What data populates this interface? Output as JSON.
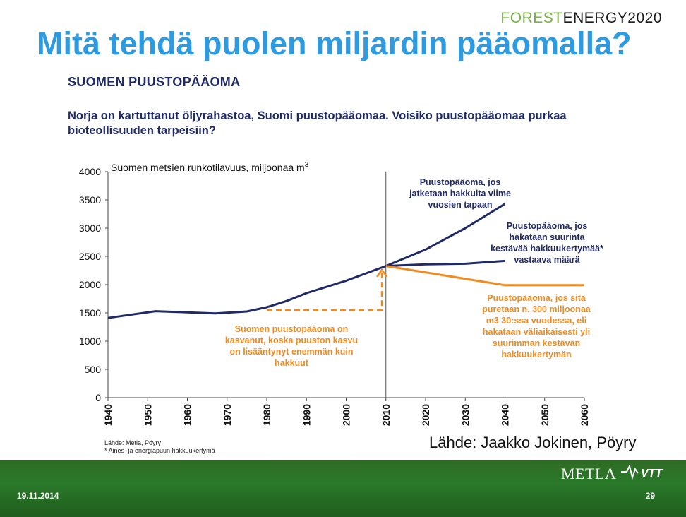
{
  "header": {
    "logo_green": "FOREST",
    "logo_dark": "ENERGY",
    "logo_number": "2020",
    "title": "Mitä tehdä puolen miljardin pääomalla?"
  },
  "section_heading": "SUOMEN PUUSTOPÄÄOMA",
  "lead": "Norja on kartuttanut öljyrahastoa, Suomi puustopääomaa. Voisiko puustopääomaa purkaa bioteollisuuden tarpeisiin?",
  "chart_data": {
    "type": "line",
    "y_caption": "Suomen metsien runkotilavuus, miljoonaa m",
    "y_caption_sup": "3",
    "x_ticks": [
      "1940",
      "1950",
      "1960",
      "1970",
      "1980",
      "1990",
      "2000",
      "2010",
      "2020",
      "2030",
      "2040",
      "2050",
      "2060"
    ],
    "y_ticks": [
      "0",
      "500",
      "1000",
      "1500",
      "2000",
      "2500",
      "3000",
      "3500",
      "4000"
    ],
    "xlim": [
      1940,
      2060
    ],
    "ylim": [
      0,
      4000
    ],
    "vertical_line_year": 2010,
    "series": [
      {
        "color": "#1f2a66",
        "points": [
          [
            1940,
            1410
          ],
          [
            1945,
            1460
          ],
          [
            1952,
            1530
          ],
          [
            1960,
            1510
          ],
          [
            1967,
            1490
          ],
          [
            1975,
            1525
          ],
          [
            1980,
            1600
          ],
          [
            1985,
            1710
          ],
          [
            1990,
            1850
          ],
          [
            2000,
            2070
          ],
          [
            2010,
            2330
          ]
        ]
      },
      {
        "color": "#1f2a66",
        "points": [
          [
            2010,
            2330
          ],
          [
            2020,
            2620
          ],
          [
            2030,
            3000
          ],
          [
            2040,
            3430
          ]
        ]
      },
      {
        "color": "#1f2a66",
        "points": [
          [
            2010,
            2330
          ],
          [
            2020,
            2360
          ],
          [
            2030,
            2370
          ],
          [
            2040,
            2420
          ]
        ]
      },
      {
        "color": "#f28a1e",
        "points": [
          [
            2010,
            2330
          ],
          [
            2040,
            1990
          ],
          [
            2060,
            1990
          ]
        ]
      }
    ],
    "orange_dashed_path": [
      [
        1980,
        1550
      ],
      [
        2009,
        1550
      ],
      [
        2009,
        2250
      ]
    ],
    "annotations": {
      "continue_current": [
        "Puustopääoma, jos",
        "jatketaan hakkuita viime",
        "vuosien tapaan"
      ],
      "sustainable": [
        "Puustopääoma, jos",
        "hakataan suurinta",
        "kestävää hakkuukertymää*",
        "vastaava määrä"
      ],
      "drawdown": [
        "Puustopääoma, jos sitä",
        "puretaan n. 300 miljoonaa",
        "m3 30:ssa vuodessa, eli",
        "hakataan väliaikaisesti yli",
        "suurimman kestävän",
        "hakkuukertymän"
      ],
      "growth": [
        "Suomen puustopääoma on",
        "kasvanut, koska puuston kasvu",
        "on lisääntynyt enemmän kuin",
        "hakkuut"
      ]
    },
    "colors": {
      "navy": "#1f2a66",
      "orange": "#f28a1e"
    }
  },
  "notes": {
    "line1": "Lähde: Metla, Pöyry",
    "line2": "* Aines- ja energiapuun hakkuukertymä"
  },
  "source": "Lähde: Jaakko Jokinen, Pöyry",
  "footer": {
    "date": "19.11.2014",
    "page": "29",
    "metla": "METLA"
  }
}
